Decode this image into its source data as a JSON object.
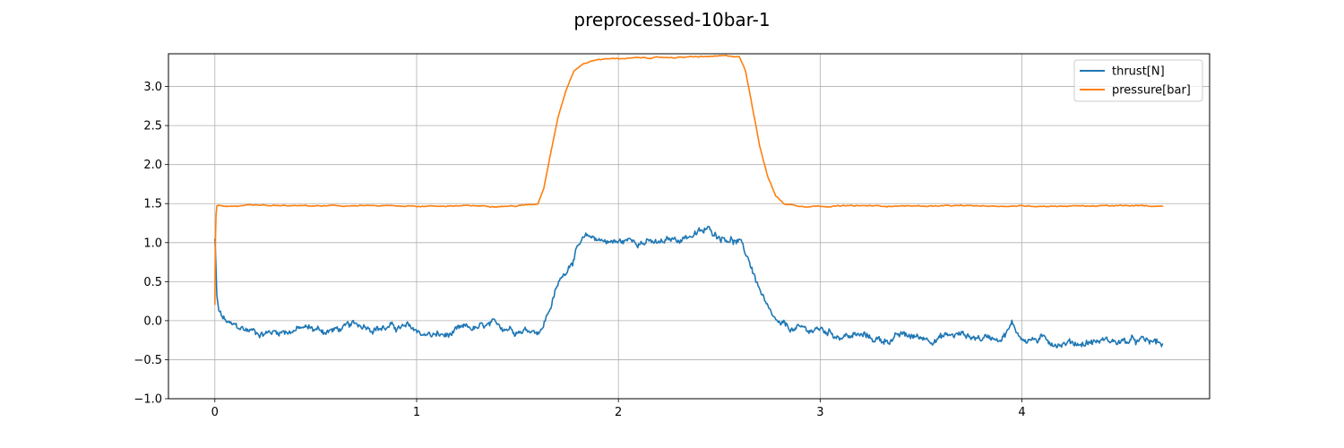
{
  "chart_data": {
    "type": "line",
    "title": "preprocessed-10bar-1",
    "xlabel": "",
    "ylabel": "",
    "xlim": [
      -0.23,
      4.93
    ],
    "ylim": [
      -1.0,
      3.42
    ],
    "xticks": [
      0,
      1,
      2,
      3,
      4
    ],
    "xtick_labels": [
      "0",
      "1",
      "2",
      "3",
      "4"
    ],
    "yticks": [
      -1.0,
      -0.5,
      0.0,
      0.5,
      1.0,
      1.5,
      2.0,
      2.5,
      3.0
    ],
    "ytick_labels": [
      "−1.0",
      "−0.5",
      "0.0",
      "0.5",
      "1.0",
      "1.5",
      "2.0",
      "2.5",
      "3.0"
    ],
    "grid": true,
    "legend_position": "top-right",
    "series": [
      {
        "name": "thrust[N]",
        "color": "#1f77b4",
        "x": [
          0.0,
          0.005,
          0.01,
          0.02,
          0.04,
          0.08,
          0.15,
          0.25,
          0.35,
          0.45,
          0.55,
          0.65,
          0.75,
          0.85,
          0.95,
          1.05,
          1.15,
          1.25,
          1.35,
          1.45,
          1.55,
          1.62,
          1.65,
          1.7,
          1.75,
          1.8,
          1.85,
          1.9,
          2.0,
          2.1,
          2.2,
          2.3,
          2.35,
          2.4,
          2.45,
          2.5,
          2.55,
          2.6,
          2.65,
          2.7,
          2.75,
          2.8,
          2.9,
          3.0,
          3.1,
          3.2,
          3.3,
          3.4,
          3.5,
          3.6,
          3.7,
          3.8,
          3.9,
          3.95,
          4.0,
          4.1,
          4.2,
          4.3,
          4.4,
          4.5,
          4.6,
          4.7
        ],
        "values": [
          1.05,
          0.7,
          0.3,
          0.1,
          0.02,
          -0.08,
          -0.12,
          -0.15,
          -0.12,
          -0.1,
          -0.13,
          -0.1,
          -0.05,
          -0.08,
          -0.1,
          -0.18,
          -0.2,
          -0.12,
          -0.1,
          -0.08,
          -0.1,
          -0.1,
          0.1,
          0.45,
          0.7,
          0.95,
          1.05,
          1.05,
          1.0,
          1.05,
          0.97,
          1.05,
          1.1,
          1.12,
          1.15,
          1.1,
          1.08,
          1.0,
          0.75,
          0.4,
          0.05,
          -0.1,
          -0.13,
          -0.12,
          -0.18,
          -0.2,
          -0.25,
          -0.2,
          -0.22,
          -0.2,
          -0.18,
          -0.22,
          -0.18,
          -0.05,
          -0.22,
          -0.25,
          -0.27,
          -0.28,
          -0.25,
          -0.27,
          -0.28,
          -0.3
        ]
      },
      {
        "name": "pressure[bar]",
        "color": "#ff7f0e",
        "x": [
          0.0,
          0.003,
          0.006,
          0.01,
          0.02,
          0.05,
          0.3,
          0.6,
          0.9,
          1.2,
          1.5,
          1.6,
          1.63,
          1.66,
          1.7,
          1.74,
          1.78,
          1.83,
          1.9,
          2.0,
          2.2,
          2.4,
          2.55,
          2.6,
          2.63,
          2.66,
          2.7,
          2.74,
          2.78,
          2.82,
          2.9,
          3.2,
          3.6,
          4.0,
          4.4,
          4.7
        ],
        "values": [
          0.2,
          1.05,
          1.35,
          1.47,
          1.47,
          1.47,
          1.47,
          1.47,
          1.47,
          1.47,
          1.47,
          1.5,
          1.7,
          2.1,
          2.6,
          2.95,
          3.2,
          3.3,
          3.35,
          3.36,
          3.37,
          3.38,
          3.39,
          3.38,
          3.2,
          2.8,
          2.25,
          1.85,
          1.6,
          1.5,
          1.47,
          1.47,
          1.47,
          1.47,
          1.47,
          1.47
        ]
      }
    ]
  }
}
